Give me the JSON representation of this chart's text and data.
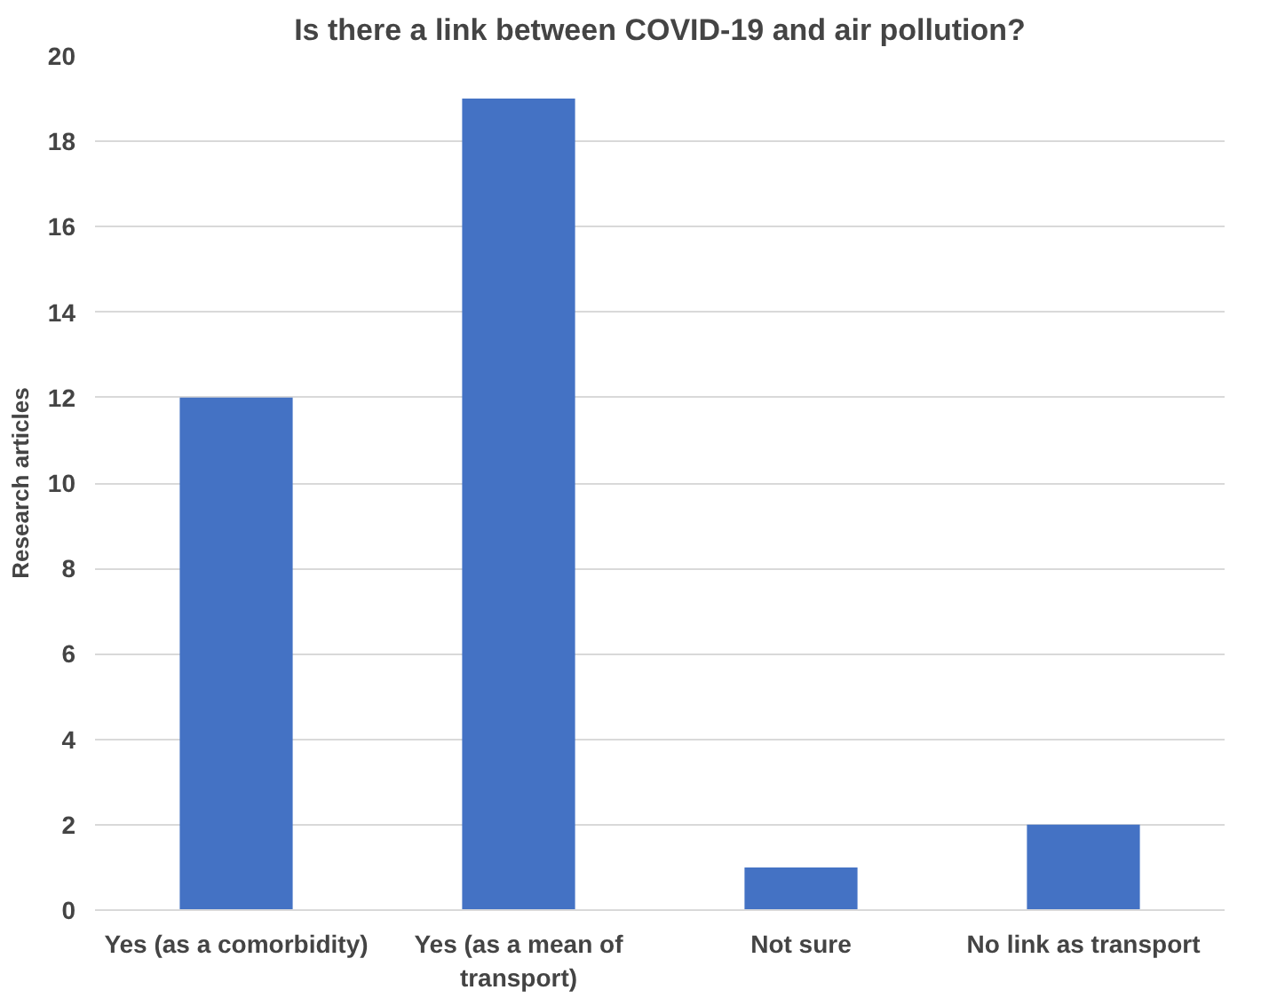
{
  "chart_data": {
    "type": "bar",
    "title": "Is there a link between COVID-19 and air pollution?",
    "ylabel": "Research articles",
    "categories": [
      "Yes (as a comorbidity)",
      "Yes (as a mean of transport)",
      "Not sure",
      "No link as transport"
    ],
    "values": [
      12,
      19,
      1,
      2
    ],
    "color": "#4472c4",
    "ylim": [
      0,
      20
    ],
    "yticks": [
      0,
      2,
      4,
      6,
      8,
      10,
      12,
      14,
      16,
      18,
      20
    ],
    "grid": "y"
  }
}
